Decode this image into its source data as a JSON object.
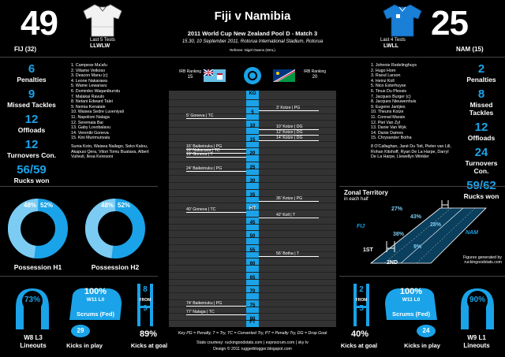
{
  "header": {
    "home_score": "49",
    "home_team_code": "FIJ (32)",
    "home_form_label": "Last 5 Tests",
    "home_form": "LLWLW",
    "away_score": "25",
    "away_team_code": "NAM (15)",
    "away_form_label": "Last 4 Tests",
    "away_form": "LWLL",
    "title": "Fiji v Namibia",
    "subtitle": "2011 World Cup New Zealand Pool D - Match 3",
    "venue": "15.30, 10 September 2011, Rotorua International Stadium, Rotorua",
    "referee": "Referee: Nigel Owens (WAL)"
  },
  "home_stats": [
    {
      "value": "6",
      "label": "Penalties"
    },
    {
      "value": "9",
      "label": "Missed Tackles"
    },
    {
      "value": "12",
      "label": "Offloads"
    },
    {
      "value": "12",
      "label": "Turnovers Con."
    },
    {
      "value": "56/59",
      "label": "Rucks won"
    }
  ],
  "away_stats": [
    {
      "value": "2",
      "label": "Penalties"
    },
    {
      "value": "8",
      "label": "Missed Tackles"
    },
    {
      "value": "12",
      "label": "Offloads"
    },
    {
      "value": "24",
      "label": "Turnovers Con."
    },
    {
      "value": "59/62",
      "label": "Rucks won"
    }
  ],
  "home_squad": [
    "1. Campese Ma'afu",
    "2. Viliame Veikoso",
    "3. Deacon Manu (c)",
    "4. Leone Nakarawa",
    "5. Wame Lewaravu",
    "6. Dominiko Waqaniburotu",
    "7. Malakai Ravulo",
    "8. Netani Edward Talei",
    "9. Nemia Kenatale",
    "10. Waisea Sedre Luveniyali",
    "11. Napolioni Nalaga",
    "12. Seremaia Bai",
    "13. Gaby Lovobalavu",
    "14. Vereniki Goneva",
    "15. Kini Murimurivalu"
  ],
  "home_bench": "Sunia Koto, Waisea Nailago, Seko Kalou, Akapusi Qera, Vitori Tomu Buatava, Albert Vulivuli, Ilesa Keresoni",
  "away_squad": [
    "1. Johnnie Redelinghuys",
    "2. Hugo Horn",
    "3. Raoul Larson",
    "4. Heinz Koll",
    "5. Nico Esterhuyse",
    "6. Tinus Du Plessis",
    "7. Jacques Burger (c)",
    "8. Jacques Nieuwenhuis",
    "9. Eugene Jantjies",
    "10. Theuns Kotze",
    "11. Conrad Marais",
    "12. Piet Van Zyl",
    "13. Danie Van Wyk",
    "14. Danie Dames",
    "15. Chrysander Botha"
  ],
  "away_bench": "8 O'Callaghan, Jané Du Toit, Pieter van Lill, Rohan Kitshoff, Ryan De La Harpe, Darryl De La Harpe, Llewellyn Winkler",
  "timeline": {
    "home_ranking_label": "IRB Ranking",
    "home_ranking": "15",
    "away_ranking_label": "IRB Ranking",
    "away_ranking": "20",
    "ko": "KO",
    "ht": "HT",
    "ft": "FT",
    "ticks": [
      "5",
      "10",
      "15",
      "20",
      "25",
      "30",
      "35",
      "40",
      "45",
      "50",
      "55",
      "60",
      "65",
      "70",
      "75",
      "80"
    ],
    "home_events": [
      {
        "minute": 6,
        "text": "5' Goneva | TC"
      },
      {
        "minute": 17,
        "text": "16' Baikeinuku | PG"
      },
      {
        "minute": 18.5,
        "text": "18' Nakarawa | TC"
      },
      {
        "minute": 20,
        "text": "19' Goneva | T"
      },
      {
        "minute": 25,
        "text": "24' Baikeinuku | PG"
      },
      {
        "minute": 40,
        "text": "40' Goneva | TC"
      },
      {
        "minute": 74,
        "text": "74' Baikeinuku | PG"
      },
      {
        "minute": 77,
        "text": "77' Nalaga | TC"
      }
    ],
    "away_events": [
      {
        "minute": 3,
        "text": "3' Kotze | PG"
      },
      {
        "minute": 10,
        "text": "10' Kotze | DG"
      },
      {
        "minute": 12,
        "text": "12' Kotze | DG"
      },
      {
        "minute": 14,
        "text": "14' Kotze | DG"
      },
      {
        "minute": 36,
        "text": "36' Kotze | PG"
      },
      {
        "minute": 42,
        "text": "42' Koll | T"
      },
      {
        "minute": 56,
        "text": "56' Botha | T"
      }
    ],
    "key": "Key PG = Penalty, T = Try, TC = Converted Try, PT = Penalty Try, DG = Drop Goal",
    "credit1": "Stats courtesy: ruckingoodstats.com | espnscrum.com | sky tv",
    "credit2": "Design © 2011 ruggerblogger.blogspot.com"
  },
  "possession": {
    "h1_label": "Possession H1",
    "h1_home": "48%",
    "h1_away": "52%",
    "h1_home_value": 48,
    "h2_label": "Possession H2",
    "h2_home": "48%",
    "h2_away": "52%",
    "h2_home_value": 48
  },
  "territory": {
    "title": "Zonal Territory",
    "subtitle": "in each half",
    "zones_first_half": [
      "27%",
      "43%",
      "28%"
    ],
    "zones_second_half": [
      "9%",
      "38%"
    ],
    "fiji_tag": "FIJ",
    "nam_tag": "NAM",
    "first_label": "1ST",
    "second_label": "2ND",
    "credit": "Figures generated by ruckingoodstats.com"
  },
  "home_set": {
    "lineout_pct": "73%",
    "lineout_label": "W8 L3",
    "lineout_title": "Lineouts",
    "scrum_pct": "100%",
    "scrum_wl": "W11 L0",
    "scrum_title": "Scrums (Fed)",
    "kicks_in_play": "29",
    "kicks_in_play_label": "Kicks in play",
    "goal_made": "8",
    "goal_from": "FROM",
    "goal_total": "9",
    "goal_pct": "89%",
    "goal_label": "Kicks at goal"
  },
  "away_set": {
    "goal_made": "2",
    "goal_from": "FROM",
    "goal_total": "5",
    "goal_pct": "40%",
    "goal_label": "Kicks at goal",
    "scrum_pct": "100%",
    "scrum_wl": "W11 L0",
    "scrum_title": "Scrums (Fed)",
    "kicks_in_play": "24",
    "kicks_in_play_label": "Kicks in play",
    "lineout_pct": "90%",
    "lineout_label": "W9 L1",
    "lineout_title": "Lineouts"
  },
  "colors": {
    "accent": "#1aa3e8",
    "background": "#000000",
    "panel": "#333333"
  }
}
